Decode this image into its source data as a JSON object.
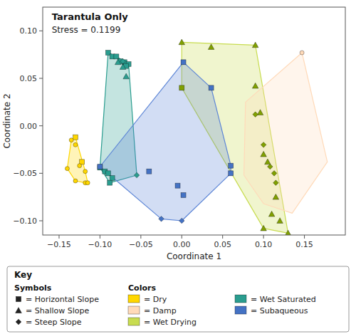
{
  "chart_data": {
    "type": "scatter",
    "title": "Tarantula Only",
    "subtitle": "Stress = 0.1199",
    "xlabel": "Coordinate 1",
    "ylabel": "Coordinate 2",
    "xlim": [
      -0.17,
      0.2
    ],
    "ylim": [
      -0.115,
      0.125
    ],
    "xticks": [
      {
        "value": -0.15,
        "label": "−0.15"
      },
      {
        "value": -0.1,
        "label": "−0.10"
      },
      {
        "value": -0.05,
        "label": "−0.05"
      },
      {
        "value": 0.0,
        "label": "0.00"
      },
      {
        "value": 0.05,
        "label": "0.05"
      },
      {
        "value": 0.1,
        "label": "0.10"
      },
      {
        "value": 0.15,
        "label": "0.15"
      }
    ],
    "yticks": [
      {
        "value": -0.1,
        "label": "−0.10"
      },
      {
        "value": -0.05,
        "label": "−0.05"
      },
      {
        "value": 0.0,
        "label": "0.00"
      },
      {
        "value": 0.05,
        "label": "0.05"
      },
      {
        "value": 0.1,
        "label": "0.10"
      }
    ],
    "groups": [
      {
        "color": "#2A9D8F",
        "hull_x": [
          -0.1,
          -0.088,
          -0.055,
          -0.065,
          -0.08,
          -0.09
        ],
        "hull_y": [
          -0.044,
          -0.06,
          -0.052,
          0.065,
          0.073,
          0.077
        ],
        "series": [
          {
            "color": "#2A9D8F",
            "marker": "square",
            "x": [
              -0.09,
              -0.085,
              -0.08,
              -0.075,
              -0.07,
              -0.065,
              -0.068,
              -0.1,
              -0.094,
              -0.09,
              -0.085,
              -0.088
            ],
            "y": [
              0.077,
              0.073,
              0.073,
              0.068,
              0.067,
              0.065,
              0.063,
              -0.044,
              -0.048,
              -0.05,
              -0.055,
              -0.06
            ]
          },
          {
            "color": "#2A9D8F",
            "marker": "triangle",
            "x": [
              -0.078,
              -0.072,
              -0.068
            ],
            "y": [
              0.067,
              0.062,
              0.052
            ]
          },
          {
            "color": "#2A9D8F",
            "marker": "diamond",
            "x": [
              -0.072,
              -0.055
            ],
            "y": [
              0.068,
              -0.052
            ]
          }
        ]
      },
      {
        "color": "#C8DC50",
        "hull_x": [
          0.0,
          0.1,
          0.13,
          0.09,
          0.0
        ],
        "hull_y": [
          0.04,
          -0.108,
          -0.113,
          0.085,
          0.088
        ],
        "series": [
          {
            "color": "#80A000",
            "marker": "triangle",
            "x": [
              0.0,
              0.036,
              0.09,
              0.09,
              0.096,
              0.105,
              0.115,
              0.1,
              0.13,
              0.1,
              0.11,
              0.12
            ],
            "y": [
              0.088,
              0.083,
              0.085,
              0.042,
              0.014,
              -0.038,
              -0.075,
              -0.108,
              -0.113,
              -0.03,
              -0.093,
              -0.1
            ]
          },
          {
            "color": "#80A000",
            "marker": "square",
            "x": [
              0.0
            ],
            "y": [
              0.04
            ]
          },
          {
            "color": "#80A000",
            "marker": "diamond",
            "x": [
              0.09,
              0.108,
              0.115,
              0.113,
              0.1
            ],
            "y": [
              0.012,
              -0.043,
              -0.06,
              -0.05,
              -0.02
            ]
          }
        ]
      },
      {
        "color": "#5C85D6",
        "hull_x": [
          -0.1,
          -0.025,
          0.0,
          0.06,
          0.06,
          0.036,
          0.002
        ],
        "hull_y": [
          -0.043,
          -0.098,
          -0.1,
          -0.05,
          -0.042,
          0.04,
          0.067
        ],
        "series": [
          {
            "color": "#4472C4",
            "marker": "square",
            "x": [
              -0.1,
              0.002,
              0.036,
              0.06,
              0.06,
              0.002,
              -0.005,
              -0.04
            ],
            "y": [
              -0.043,
              0.067,
              0.04,
              -0.042,
              -0.05,
              -0.073,
              -0.063,
              -0.048
            ]
          },
          {
            "color": "#4472C4",
            "marker": "diamond",
            "x": [
              0.0,
              -0.025
            ],
            "y": [
              -0.1,
              -0.098
            ]
          }
        ]
      },
      {
        "color": "#FFD700",
        "hull_x": [
          -0.14,
          -0.13,
          -0.118,
          -0.115,
          -0.118,
          -0.13,
          -0.135
        ],
        "hull_y": [
          -0.045,
          -0.058,
          -0.06,
          -0.06,
          -0.048,
          -0.012,
          -0.015
        ],
        "series": [
          {
            "color": "#FFD700",
            "marker": "square",
            "x": [
              -0.13,
              -0.122
            ],
            "y": [
              -0.012,
              -0.038
            ]
          },
          {
            "color": "#FFD700",
            "marker": "circle",
            "x": [
              -0.135,
              -0.13,
              -0.125,
              -0.118,
              -0.13,
              -0.118,
              -0.14,
              -0.115
            ],
            "y": [
              -0.015,
              -0.02,
              -0.042,
              -0.048,
              -0.058,
              -0.06,
              -0.045,
              -0.06
            ]
          }
        ]
      },
      {
        "color": "#FFDAB9",
        "hull_x": [
          0.078,
          0.076,
          0.1,
          0.135,
          0.178,
          0.147
        ],
        "hull_y": [
          0.025,
          -0.052,
          -0.082,
          -0.092,
          -0.038,
          0.077
        ],
        "series": [
          {
            "color": "#FFDAB9",
            "marker": "circle",
            "x": [
              0.147
            ],
            "y": [
              0.077
            ]
          }
        ]
      }
    ],
    "key": {
      "title": "Key",
      "symbols_title": "Symbols",
      "colors_title": "Colors",
      "symbols": [
        {
          "marker": "square",
          "color": "#222222",
          "label": "= Horizontal Slope"
        },
        {
          "marker": "triangle",
          "color": "#222222",
          "label": "= Shallow Slope"
        },
        {
          "marker": "diamond",
          "color": "#222222",
          "label": "= Steep Slope"
        }
      ],
      "colors": [
        {
          "color": "#FFD700",
          "label": "= Dry"
        },
        {
          "color": "#FFDAB9",
          "label": "= Damp"
        },
        {
          "color": "#C8DC50",
          "label": "= Wet Drying"
        },
        {
          "color": "#2A9D8F",
          "label": "= Wet Saturated"
        },
        {
          "color": "#4472C4",
          "label": "= Subaqueous"
        }
      ]
    }
  }
}
